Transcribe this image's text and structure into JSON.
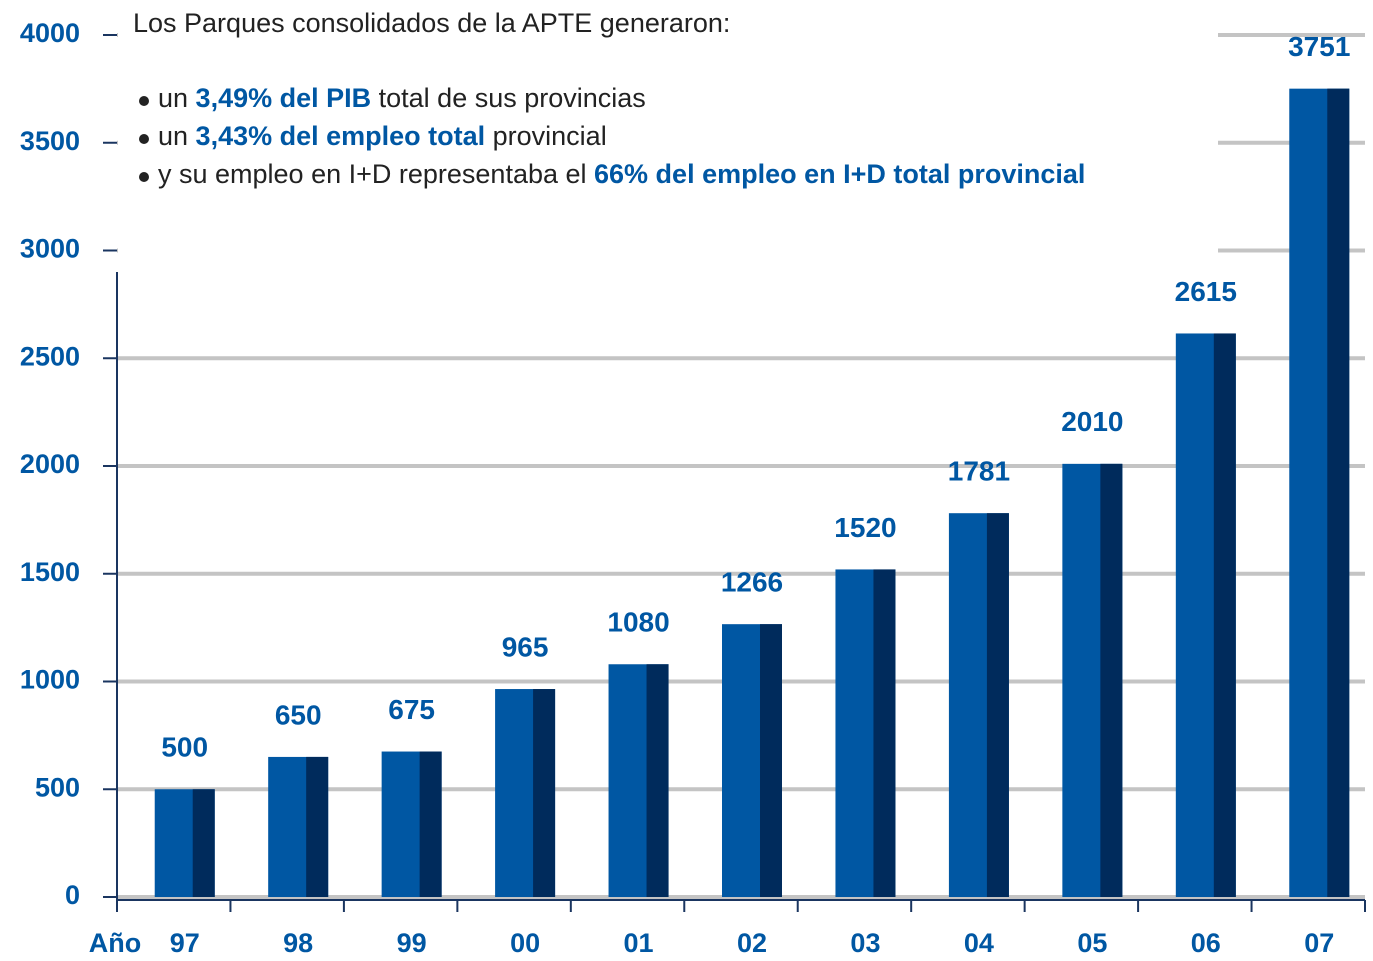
{
  "chart_data": {
    "type": "bar",
    "x_label": "Año",
    "categories": [
      "97",
      "98",
      "99",
      "00",
      "01",
      "02",
      "03",
      "04",
      "05",
      "06",
      "07"
    ],
    "values": [
      500,
      650,
      675,
      965,
      1080,
      1266,
      1520,
      1781,
      2010,
      2615,
      3751
    ],
    "color": "#0057a3",
    "shade_color": "#002b5c",
    "ylim": [
      0,
      4000
    ],
    "yticks": [
      0,
      500,
      1000,
      1500,
      2000,
      2500,
      3000,
      3500,
      4000
    ],
    "grid": true,
    "annotation": {
      "intro": "Los Parques consolidados de la APTE generaron:",
      "bullets": [
        [
          "un ",
          "3,49% del PIB",
          " total de sus provincias"
        ],
        [
          "un ",
          "3,43% del empleo total",
          " provincial"
        ],
        [
          "y su empleo en I+D representaba el ",
          "66% del empleo en I+D total provincial"
        ]
      ]
    }
  }
}
